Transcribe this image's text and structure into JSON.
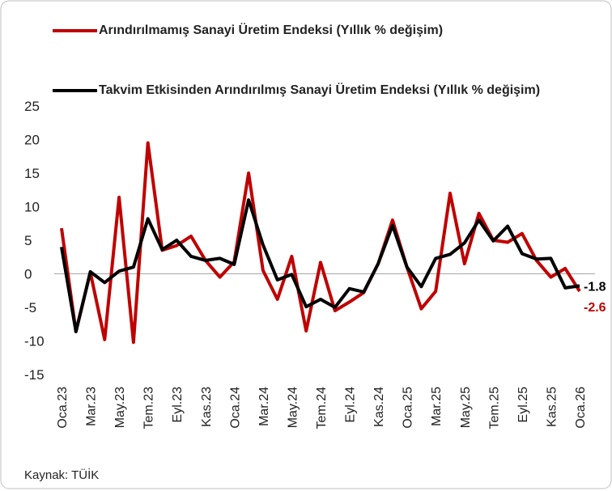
{
  "chart_data": {
    "type": "line",
    "source": "Kaynak: TÜİK",
    "categories": [
      "Oca.23",
      null,
      "Mar.23",
      null,
      "May.23",
      null,
      "Tem.23",
      null,
      "Eyl.23",
      null,
      "Kas.23",
      null,
      "Oca.24",
      null,
      "Mar.24",
      null,
      "May.24",
      null,
      "Tem.24",
      null,
      "Eyl.24",
      null,
      "Kas.24",
      null,
      "Oca.25",
      null,
      "Mar.25",
      null,
      "May.25",
      null,
      "Tem.25",
      null,
      "Eyl.25",
      null,
      "Kas.25",
      null,
      "Oca.26"
    ],
    "series": [
      {
        "name": "Arındırılmamış Sanayi Üretim Endeksi (Yıllık % değişim)",
        "color": "#c00000",
        "values": [
          6.8,
          -8.6,
          0.2,
          -9.8,
          11.4,
          -10.2,
          19.5,
          3.5,
          4.2,
          5.6,
          2.0,
          -0.5,
          1.8,
          15.0,
          0.5,
          -3.8,
          2.6,
          -8.5,
          1.7,
          -5.5,
          -4.2,
          -2.8,
          1.5,
          8.0,
          1.0,
          -5.2,
          -2.6,
          12.0,
          1.5,
          9.0,
          5.0,
          4.7,
          6.0,
          2.0,
          -0.5,
          0.8,
          -2.6
        ]
      },
      {
        "name": "Takvim Etkisinden Arındırılmış Sanayi Üretim Endeksi (Yıllık % değişim)",
        "color": "#000000",
        "values": [
          4.0,
          -8.6,
          0.3,
          -1.3,
          0.4,
          1.0,
          8.2,
          3.6,
          5.0,
          2.6,
          2.0,
          2.3,
          1.4,
          11.0,
          4.3,
          -0.9,
          -0.1,
          -4.9,
          -3.8,
          -5.0,
          -2.2,
          -2.7,
          1.5,
          7.2,
          1.0,
          -1.9,
          2.3,
          2.9,
          4.6,
          8.0,
          4.9,
          7.1,
          3.0,
          2.2,
          2.3,
          -2.1,
          -1.8
        ]
      }
    ],
    "ylim": [
      -15,
      25
    ],
    "yticks": [
      -15,
      -10,
      -5,
      0,
      5,
      10,
      15,
      20,
      25
    ],
    "zero_line": true
  }
}
